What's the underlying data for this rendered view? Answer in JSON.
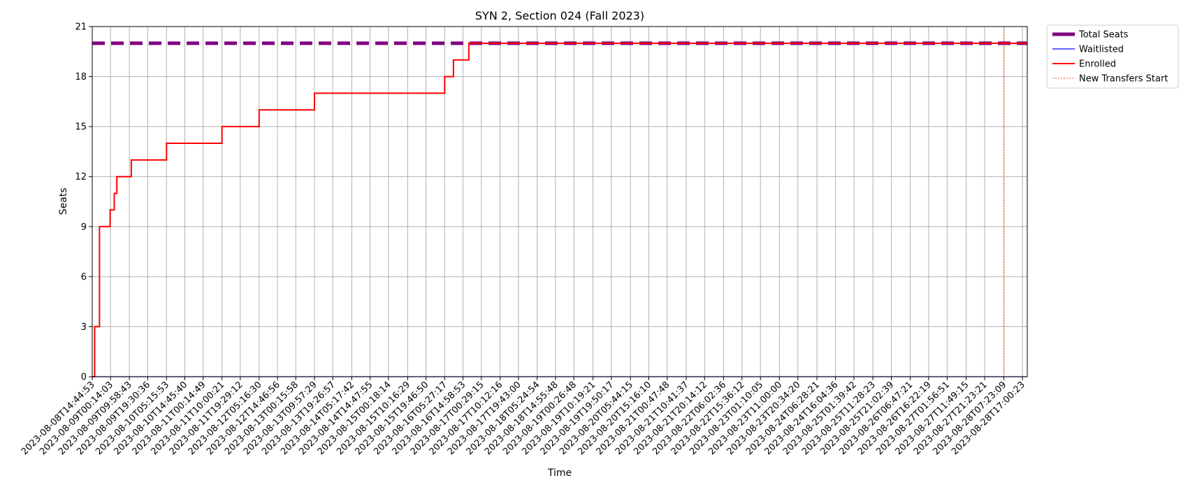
{
  "chart_data": {
    "type": "line",
    "title": "SYN 2, Section 024 (Fall 2023)",
    "xlabel": "Time",
    "ylabel": "Seats",
    "ylim": [
      0,
      21
    ],
    "yticks": [
      0,
      3,
      6,
      9,
      12,
      15,
      18,
      21
    ],
    "grid": true,
    "legend_placement": "outside-top-right",
    "xlim": [
      "2023-08-08T14:44:53",
      "2023-08-28T19:30:00"
    ],
    "xticks": [
      "2023-08-08T14:44:53",
      "2023-08-09T00:14:03",
      "2023-08-09T09:58:43",
      "2023-08-09T19:30:36",
      "2023-08-10T05:15:53",
      "2023-08-10T14:45:40",
      "2023-08-11T00:14:49",
      "2023-08-11T10:00:21",
      "2023-08-11T19:29:12",
      "2023-08-12T05:16:30",
      "2023-08-12T14:46:56",
      "2023-08-13T00:15:58",
      "2023-08-13T09:57:29",
      "2023-08-13T19:26:57",
      "2023-08-14T05:17:42",
      "2023-08-14T14:47:55",
      "2023-08-15T00:18:14",
      "2023-08-15T10:16:29",
      "2023-08-15T19:46:50",
      "2023-08-16T05:27:17",
      "2023-08-16T14:58:53",
      "2023-08-17T00:29:15",
      "2023-08-17T10:12:16",
      "2023-08-17T19:43:00",
      "2023-08-18T05:24:54",
      "2023-08-18T14:55:48",
      "2023-08-19T00:26:48",
      "2023-08-19T10:19:21",
      "2023-08-19T19:50:17",
      "2023-08-20T05:44:15",
      "2023-08-20T15:16:10",
      "2023-08-21T00:47:48",
      "2023-08-21T10:41:37",
      "2023-08-21T20:14:12",
      "2023-08-22T06:02:36",
      "2023-08-22T15:36:12",
      "2023-08-23T01:10:05",
      "2023-08-23T11:00:00",
      "2023-08-23T20:34:20",
      "2023-08-24T06:28:21",
      "2023-08-24T16:04:36",
      "2023-08-25T01:39:42",
      "2023-08-25T11:28:23",
      "2023-08-25T21:02:39",
      "2023-08-26T06:47:21",
      "2023-08-26T16:22:19",
      "2023-08-27T01:56:51",
      "2023-08-27T11:49:15",
      "2023-08-27T21:23:21",
      "2023-08-28T07:23:09",
      "2023-08-28T17:00:23"
    ],
    "series": [
      {
        "name": "Total Seats",
        "color": "#800080",
        "style": "dashed",
        "points": [
          {
            "x": "2023-08-08T14:44:53",
            "y": 20
          },
          {
            "x": "2023-08-28T19:30:00",
            "y": 20
          }
        ]
      },
      {
        "name": "Waitlisted",
        "color": "#0000ff",
        "style": "solid",
        "points": [
          {
            "x": "2023-08-08T14:44:53",
            "y": 0
          },
          {
            "x": "2023-08-28T19:30:00",
            "y": 0
          }
        ]
      },
      {
        "name": "Enrolled",
        "color": "#ff0000",
        "style": "step",
        "points": [
          {
            "x": "2023-08-08T14:44:53",
            "y": 0
          },
          {
            "x": "2023-08-08T16:00:00",
            "y": 3
          },
          {
            "x": "2023-08-08T18:30:00",
            "y": 9
          },
          {
            "x": "2023-08-09T00:00:00",
            "y": 10
          },
          {
            "x": "2023-08-09T02:10:00",
            "y": 11
          },
          {
            "x": "2023-08-09T03:30:00",
            "y": 12
          },
          {
            "x": "2023-08-09T11:00:00",
            "y": 13
          },
          {
            "x": "2023-08-10T05:15:53",
            "y": 14
          },
          {
            "x": "2023-08-11T10:00:21",
            "y": 15
          },
          {
            "x": "2023-08-12T05:16:30",
            "y": 16
          },
          {
            "x": "2023-08-13T09:57:29",
            "y": 17
          },
          {
            "x": "2023-08-16T05:27:17",
            "y": 18
          },
          {
            "x": "2023-08-16T10:00:00",
            "y": 19
          },
          {
            "x": "2023-08-16T18:00:00",
            "y": 20
          },
          {
            "x": "2023-08-28T19:30:00",
            "y": 20
          }
        ]
      }
    ],
    "annotations": [
      {
        "name": "New Transfers Start",
        "type": "vertical-line",
        "x": "2023-08-28T07:23:09",
        "color": "#ff4500",
        "style": "dotted"
      }
    ]
  }
}
